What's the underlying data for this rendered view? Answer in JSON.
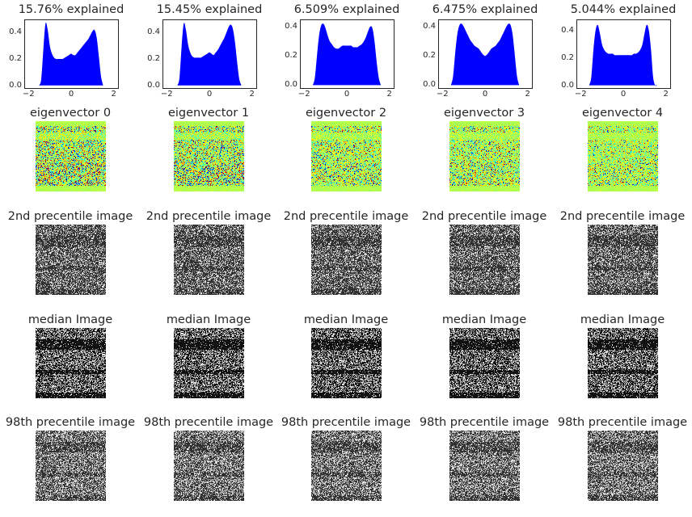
{
  "chart_data": [
    {
      "type": "area",
      "title": "15.76% explained",
      "xlim": [
        -2.2,
        2.2
      ],
      "ylim": [
        -0.02,
        0.5
      ],
      "xticks": [
        "−2",
        "0",
        "2"
      ],
      "yticks": [
        "0.0",
        "0.2",
        "0.4"
      ],
      "x": [
        -1.5,
        -1.4,
        -1.3,
        -1.2,
        -1.1,
        -1.0,
        -0.9,
        -0.8,
        -0.7,
        -0.6,
        -0.5,
        -0.4,
        -0.3,
        -0.2,
        -0.1,
        0.0,
        0.1,
        0.2,
        0.3,
        0.4,
        0.5,
        0.6,
        0.7,
        0.8,
        0.9,
        1.0,
        1.1,
        1.2,
        1.3,
        1.4,
        1.5
      ],
      "y": [
        0.0,
        0.05,
        0.28,
        0.47,
        0.42,
        0.3,
        0.24,
        0.21,
        0.2,
        0.2,
        0.2,
        0.2,
        0.21,
        0.22,
        0.23,
        0.24,
        0.23,
        0.23,
        0.25,
        0.27,
        0.29,
        0.31,
        0.33,
        0.35,
        0.38,
        0.41,
        0.42,
        0.36,
        0.22,
        0.07,
        0.0
      ]
    },
    {
      "type": "area",
      "title": "15.45% explained",
      "xlim": [
        -2.2,
        2.2
      ],
      "ylim": [
        -0.02,
        0.5
      ],
      "xticks": [
        "−2",
        "0",
        "2"
      ],
      "yticks": [
        "0.0",
        "0.2",
        "0.4"
      ],
      "x": [
        -1.5,
        -1.4,
        -1.3,
        -1.2,
        -1.1,
        -1.0,
        -0.9,
        -0.8,
        -0.7,
        -0.6,
        -0.5,
        -0.4,
        -0.3,
        -0.2,
        -0.1,
        0.0,
        0.1,
        0.2,
        0.3,
        0.4,
        0.5,
        0.6,
        0.7,
        0.8,
        0.9,
        1.0,
        1.1,
        1.2,
        1.3,
        1.4,
        1.5
      ],
      "y": [
        0.0,
        0.06,
        0.3,
        0.47,
        0.42,
        0.31,
        0.25,
        0.22,
        0.21,
        0.21,
        0.21,
        0.21,
        0.22,
        0.23,
        0.24,
        0.25,
        0.24,
        0.23,
        0.25,
        0.27,
        0.3,
        0.33,
        0.36,
        0.4,
        0.44,
        0.46,
        0.43,
        0.33,
        0.18,
        0.05,
        0.0
      ]
    },
    {
      "type": "area",
      "title": "6.509% explained",
      "xlim": [
        -2.2,
        2.2
      ],
      "ylim": [
        -0.02,
        0.45
      ],
      "xticks": [
        "−2",
        "0",
        "2"
      ],
      "yticks": [
        "0.0",
        "0.2",
        "0.4"
      ],
      "x": [
        -1.6,
        -1.5,
        -1.4,
        -1.3,
        -1.2,
        -1.1,
        -1.0,
        -0.9,
        -0.8,
        -0.7,
        -0.6,
        -0.5,
        -0.4,
        -0.3,
        -0.2,
        -0.1,
        0.0,
        0.1,
        0.2,
        0.3,
        0.4,
        0.5,
        0.6,
        0.7,
        0.8,
        0.9,
        1.0,
        1.1,
        1.2,
        1.3,
        1.4,
        1.5,
        1.6
      ],
      "y": [
        0.0,
        0.05,
        0.2,
        0.34,
        0.41,
        0.42,
        0.39,
        0.34,
        0.3,
        0.28,
        0.26,
        0.25,
        0.25,
        0.26,
        0.27,
        0.27,
        0.27,
        0.27,
        0.27,
        0.26,
        0.26,
        0.26,
        0.27,
        0.28,
        0.3,
        0.33,
        0.37,
        0.4,
        0.39,
        0.3,
        0.16,
        0.05,
        0.0
      ]
    },
    {
      "type": "area",
      "title": "6.475% explained",
      "xlim": [
        -2.2,
        2.2
      ],
      "ylim": [
        -0.02,
        0.45
      ],
      "xticks": [
        "−2",
        "0",
        "2"
      ],
      "yticks": [
        "0.0",
        "0.2",
        "0.4"
      ],
      "x": [
        -1.6,
        -1.5,
        -1.4,
        -1.3,
        -1.2,
        -1.1,
        -1.0,
        -0.9,
        -0.8,
        -0.7,
        -0.6,
        -0.5,
        -0.4,
        -0.3,
        -0.2,
        -0.1,
        0.0,
        0.1,
        0.2,
        0.3,
        0.4,
        0.5,
        0.6,
        0.7,
        0.8,
        0.9,
        1.0,
        1.1,
        1.2,
        1.3,
        1.4,
        1.5,
        1.6
      ],
      "y": [
        0.0,
        0.06,
        0.22,
        0.35,
        0.41,
        0.42,
        0.4,
        0.37,
        0.34,
        0.31,
        0.29,
        0.27,
        0.26,
        0.25,
        0.23,
        0.21,
        0.2,
        0.21,
        0.23,
        0.25,
        0.26,
        0.27,
        0.29,
        0.31,
        0.34,
        0.37,
        0.4,
        0.42,
        0.41,
        0.34,
        0.2,
        0.06,
        0.0
      ]
    },
    {
      "type": "area",
      "title": "5.044% explained",
      "xlim": [
        -2.2,
        2.2
      ],
      "ylim": [
        -0.02,
        0.48
      ],
      "xticks": [
        "−2",
        "0",
        "2"
      ],
      "yticks": [
        "0.0",
        "0.2",
        "0.4"
      ],
      "x": [
        -1.6,
        -1.5,
        -1.4,
        -1.3,
        -1.2,
        -1.1,
        -1.0,
        -0.9,
        -0.8,
        -0.7,
        -0.6,
        -0.5,
        -0.4,
        -0.3,
        -0.2,
        -0.1,
        0.0,
        0.1,
        0.2,
        0.3,
        0.4,
        0.5,
        0.6,
        0.7,
        0.8,
        0.9,
        1.0,
        1.1,
        1.2,
        1.3,
        1.4,
        1.5,
        1.6
      ],
      "y": [
        0.0,
        0.06,
        0.26,
        0.4,
        0.44,
        0.38,
        0.3,
        0.26,
        0.24,
        0.23,
        0.23,
        0.23,
        0.22,
        0.22,
        0.22,
        0.22,
        0.22,
        0.22,
        0.22,
        0.22,
        0.22,
        0.23,
        0.23,
        0.24,
        0.26,
        0.3,
        0.38,
        0.44,
        0.4,
        0.26,
        0.06,
        0.0,
        0.0
      ]
    }
  ],
  "row_titles": {
    "eigenvectors": [
      "eigenvector 0",
      "eigenvector 1",
      "eigenvector 2",
      "eigenvector 3",
      "eigenvector 4"
    ],
    "p2": [
      "2nd precentile image",
      "2nd precentile image",
      "2nd precentile image",
      "2nd precentile image",
      "2nd precentile image"
    ],
    "median": [
      "median Image",
      "median Image",
      "median Image",
      "median Image",
      "median Image"
    ],
    "p98": [
      "98th precentile image",
      "98th precentile image",
      "98th precentile image",
      "98th precentile image",
      "98th precentile image"
    ]
  },
  "colors": {
    "fill": "#0000ff",
    "text": "#262626",
    "axis": "#262626",
    "background": "#ffffff"
  }
}
